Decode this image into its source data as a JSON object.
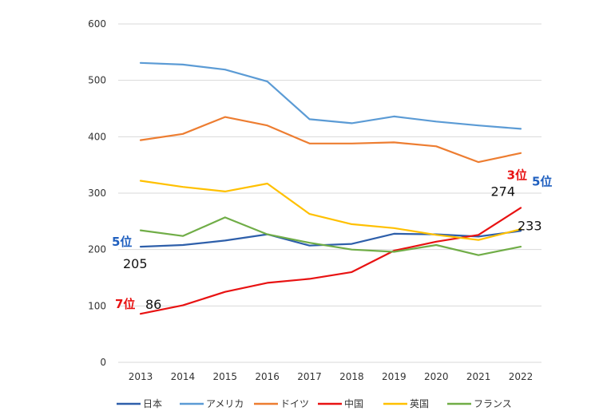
{
  "chart_data": {
    "type": "line",
    "title": "",
    "xlabel": "",
    "ylabel": "",
    "ylim": [
      0,
      600
    ],
    "yticks": [
      0,
      100,
      200,
      300,
      400,
      500,
      600
    ],
    "grid": true,
    "legend_position": "bottom",
    "x": [
      "2013",
      "2014",
      "2015",
      "2016",
      "2017",
      "2018",
      "2019",
      "2020",
      "2021",
      "2022"
    ],
    "series": [
      {
        "name": "日本",
        "color": "#2e5faa",
        "values": [
          205,
          208,
          216,
          227,
          207,
          210,
          228,
          227,
          223,
          233
        ]
      },
      {
        "name": "アメリカ",
        "color": "#5b9bd5",
        "values": [
          531,
          528,
          519,
          498,
          431,
          424,
          436,
          427,
          420,
          414
        ]
      },
      {
        "name": "ドイツ",
        "color": "#ed7d31",
        "values": [
          394,
          405,
          435,
          420,
          388,
          388,
          390,
          383,
          355,
          371
        ]
      },
      {
        "name": "中国",
        "color": "#e81212",
        "values": [
          86,
          101,
          125,
          141,
          148,
          160,
          198,
          214,
          226,
          274
        ]
      },
      {
        "name": "英国",
        "color": "#ffc000",
        "values": [
          322,
          311,
          303,
          317,
          263,
          245,
          238,
          226,
          217,
          236
        ]
      },
      {
        "name": "フランス",
        "color": "#70ad47",
        "values": [
          234,
          224,
          257,
          227,
          212,
          200,
          196,
          208,
          190,
          205
        ]
      }
    ],
    "annotations": [
      {
        "text": "5位",
        "color": "#1f5fbf",
        "kind": "rank",
        "series": "日本",
        "year": "2013"
      },
      {
        "text": "205",
        "color": "#111111",
        "kind": "value",
        "series": "日本",
        "year": "2013"
      },
      {
        "text": "7位",
        "color": "#e81212",
        "kind": "rank",
        "series": "中国",
        "year": "2013"
      },
      {
        "text": "86",
        "color": "#111111",
        "kind": "value",
        "series": "中国",
        "year": "2013"
      },
      {
        "text": "3位",
        "color": "#e81212",
        "kind": "rank",
        "series": "中国",
        "year": "2022"
      },
      {
        "text": "274",
        "color": "#111111",
        "kind": "value",
        "series": "中国",
        "year": "2022"
      },
      {
        "text": "5位",
        "color": "#1f5fbf",
        "kind": "rank",
        "series": "日本",
        "year": "2022"
      },
      {
        "text": "233",
        "color": "#111111",
        "kind": "value",
        "series": "日本",
        "year": "2022"
      }
    ]
  }
}
